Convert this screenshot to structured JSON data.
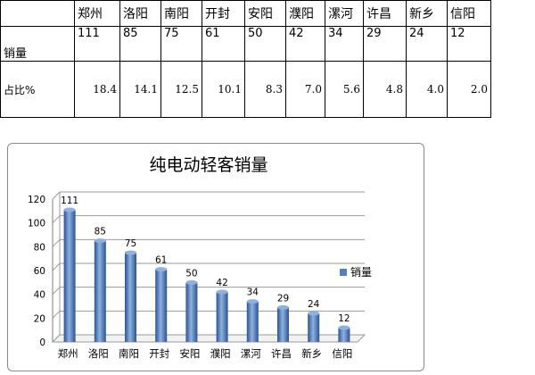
{
  "table": {
    "header_cities": [
      "郑州",
      "洛阳",
      "南阳",
      "开封",
      "安阳",
      "濮阳",
      "漯河",
      "许昌",
      "新乡",
      "信阳"
    ],
    "sales_label": "销量",
    "sales": [
      "111",
      "85",
      "75",
      "61",
      "50",
      "42",
      "34",
      "29",
      "24",
      "12"
    ],
    "share_label": "占比%",
    "shares": [
      "18.4",
      "14.1",
      "12.5",
      "10.1",
      "8.3",
      "7.0",
      "5.6",
      "4.8",
      "4.0",
      "2.0"
    ]
  },
  "chart_data": {
    "type": "bar",
    "title": "纯电动轻客销量",
    "categories": [
      "郑州",
      "洛阳",
      "南阳",
      "开封",
      "安阳",
      "濮阳",
      "漯河",
      "许昌",
      "新乡",
      "信阳"
    ],
    "series": [
      {
        "name": "销量",
        "values": [
          111,
          85,
          75,
          61,
          50,
          42,
          34,
          29,
          24,
          12
        ]
      }
    ],
    "ylim": [
      0,
      120
    ],
    "yticks": [
      0,
      20,
      40,
      60,
      80,
      100,
      120
    ],
    "grid": true,
    "legend": "right",
    "bar_color": "#4f81bd",
    "bar_dark": "#2a5591",
    "bar_light": "#8fb1dd"
  }
}
